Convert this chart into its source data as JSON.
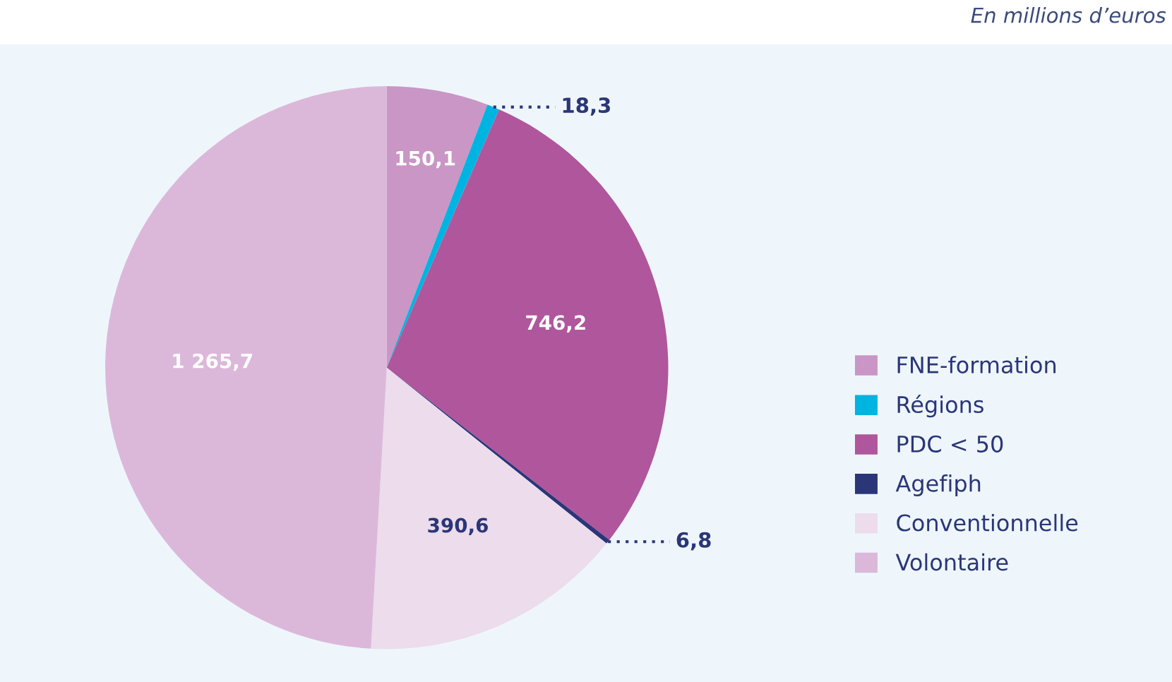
{
  "chart_data": {
    "type": "pie",
    "categories": [
      "FNE-formation",
      "Régions",
      "PDC < 50",
      "Agefiph",
      "Conventionnelle",
      "Volontaire"
    ],
    "values": [
      150.1,
      18.3,
      746.2,
      6.8,
      390.6,
      1265.7
    ],
    "colors": [
      "#c996c5",
      "#00b4e1",
      "#b0569c",
      "#2b3678",
      "#ecdcec",
      "#dbb8d9"
    ],
    "value_labels": [
      "150,1",
      "18,3",
      "746,2",
      "6,8",
      "390,6",
      "1 265,7"
    ],
    "legend": "right",
    "annotations": [
      "En millions d’euros"
    ]
  }
}
